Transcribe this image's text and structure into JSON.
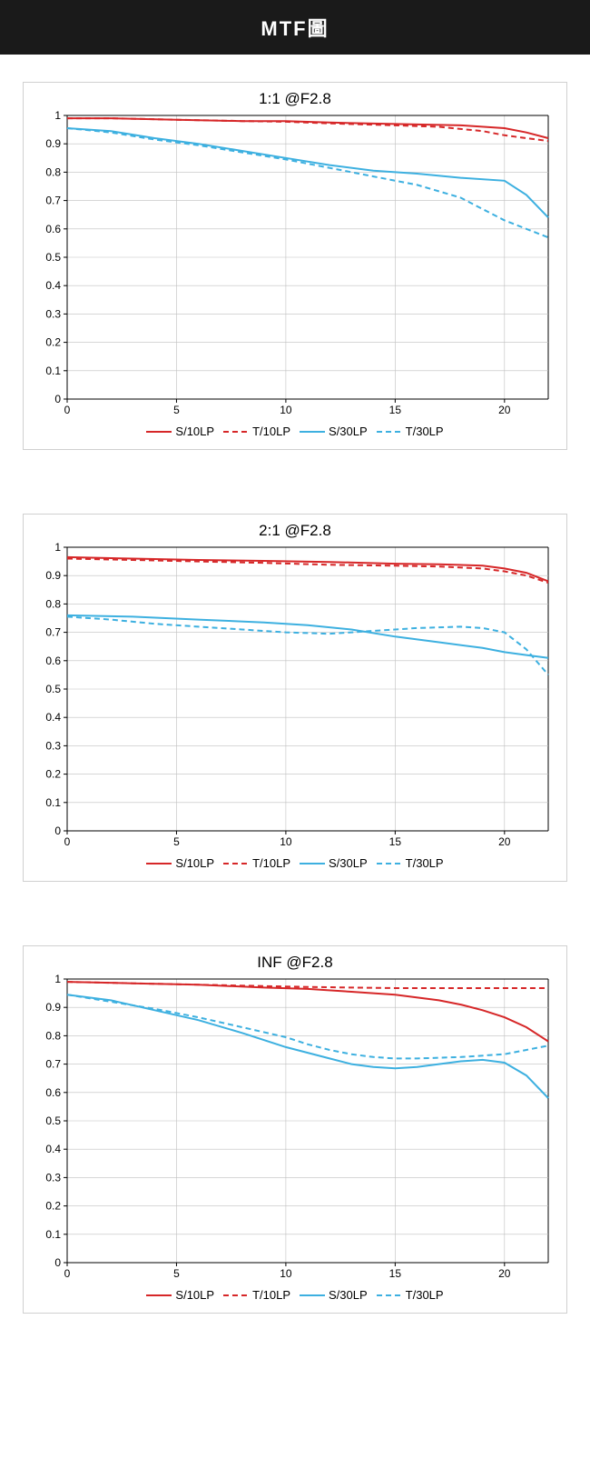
{
  "header": {
    "title": "MTF圖"
  },
  "global": {
    "page_bg": "#ffffff",
    "header_bg": "#1a1a1a",
    "header_color": "#ffffff",
    "panel_border": "#d0d0d0"
  },
  "axis": {
    "xlim": [
      0,
      22
    ],
    "ylim": [
      0,
      1
    ],
    "xtick_step": 5,
    "ytick_step": 0.1,
    "x_ticks": [
      0,
      5,
      10,
      15,
      20
    ],
    "y_ticks": [
      0,
      0.1,
      0.2,
      0.3,
      0.4,
      0.5,
      0.6,
      0.7,
      0.8,
      0.9,
      1
    ],
    "y_tick_labels": [
      "0",
      "0.1",
      "0.2",
      "0.3",
      "0.4",
      "0.5",
      "0.6",
      "0.7",
      "0.8",
      "0.9",
      "1"
    ],
    "grid_color": "#bfbfbf",
    "axis_color": "#000000",
    "tick_fontsize": 12,
    "title_fontsize": 17
  },
  "series_style": {
    "s10": {
      "label": "S/10LP",
      "color": "#d62728",
      "width": 2.0,
      "dash": "none"
    },
    "t10": {
      "label": "T/10LP",
      "color": "#d62728",
      "width": 2.0,
      "dash": "6,4"
    },
    "s30": {
      "label": "S/30LP",
      "color": "#3db0e0",
      "width": 2.0,
      "dash": "none"
    },
    "t30": {
      "label": "T/30LP",
      "color": "#3db0e0",
      "width": 2.0,
      "dash": "6,4"
    }
  },
  "legend_order": [
    "s10",
    "t10",
    "s30",
    "t30"
  ],
  "charts": [
    {
      "id": "chart-1-1",
      "title": "1:1  @F2.8",
      "series": {
        "s10": [
          [
            0,
            0.99
          ],
          [
            2,
            0.99
          ],
          [
            5,
            0.985
          ],
          [
            8,
            0.98
          ],
          [
            10,
            0.98
          ],
          [
            12,
            0.975
          ],
          [
            15,
            0.97
          ],
          [
            18,
            0.965
          ],
          [
            20,
            0.955
          ],
          [
            21,
            0.94
          ],
          [
            22,
            0.92
          ]
        ],
        "t10": [
          [
            0,
            0.99
          ],
          [
            2,
            0.99
          ],
          [
            5,
            0.985
          ],
          [
            8,
            0.98
          ],
          [
            10,
            0.978
          ],
          [
            12,
            0.972
          ],
          [
            15,
            0.965
          ],
          [
            17,
            0.96
          ],
          [
            19,
            0.945
          ],
          [
            20,
            0.93
          ],
          [
            21,
            0.92
          ],
          [
            22,
            0.91
          ]
        ],
        "s30": [
          [
            0,
            0.955
          ],
          [
            2,
            0.945
          ],
          [
            4,
            0.92
          ],
          [
            6,
            0.9
          ],
          [
            8,
            0.875
          ],
          [
            10,
            0.85
          ],
          [
            12,
            0.825
          ],
          [
            14,
            0.805
          ],
          [
            16,
            0.795
          ],
          [
            18,
            0.78
          ],
          [
            20,
            0.77
          ],
          [
            21,
            0.72
          ],
          [
            22,
            0.64
          ]
        ],
        "t30": [
          [
            0,
            0.955
          ],
          [
            2,
            0.94
          ],
          [
            4,
            0.915
          ],
          [
            6,
            0.895
          ],
          [
            8,
            0.87
          ],
          [
            10,
            0.845
          ],
          [
            12,
            0.815
          ],
          [
            14,
            0.785
          ],
          [
            16,
            0.755
          ],
          [
            18,
            0.71
          ],
          [
            19,
            0.67
          ],
          [
            20,
            0.63
          ],
          [
            21,
            0.6
          ],
          [
            22,
            0.57
          ]
        ]
      }
    },
    {
      "id": "chart-2-1",
      "title": "2:1  @F2.8",
      "series": {
        "s10": [
          [
            0,
            0.965
          ],
          [
            3,
            0.96
          ],
          [
            6,
            0.955
          ],
          [
            9,
            0.952
          ],
          [
            12,
            0.948
          ],
          [
            15,
            0.942
          ],
          [
            17,
            0.94
          ],
          [
            19,
            0.935
          ],
          [
            20,
            0.925
          ],
          [
            21,
            0.91
          ],
          [
            22,
            0.88
          ]
        ],
        "t10": [
          [
            0,
            0.96
          ],
          [
            3,
            0.955
          ],
          [
            6,
            0.95
          ],
          [
            9,
            0.945
          ],
          [
            12,
            0.938
          ],
          [
            15,
            0.935
          ],
          [
            17,
            0.932
          ],
          [
            19,
            0.925
          ],
          [
            20,
            0.915
          ],
          [
            21,
            0.9
          ],
          [
            22,
            0.875
          ]
        ],
        "s30": [
          [
            0,
            0.76
          ],
          [
            3,
            0.755
          ],
          [
            6,
            0.745
          ],
          [
            9,
            0.735
          ],
          [
            11,
            0.725
          ],
          [
            13,
            0.71
          ],
          [
            15,
            0.685
          ],
          [
            17,
            0.665
          ],
          [
            19,
            0.645
          ],
          [
            20,
            0.63
          ],
          [
            21,
            0.62
          ],
          [
            22,
            0.61
          ]
        ],
        "t30": [
          [
            0,
            0.755
          ],
          [
            2,
            0.745
          ],
          [
            4,
            0.73
          ],
          [
            6,
            0.72
          ],
          [
            8,
            0.71
          ],
          [
            10,
            0.7
          ],
          [
            12,
            0.695
          ],
          [
            14,
            0.705
          ],
          [
            16,
            0.715
          ],
          [
            18,
            0.72
          ],
          [
            19,
            0.715
          ],
          [
            20,
            0.7
          ],
          [
            21,
            0.64
          ],
          [
            22,
            0.55
          ]
        ]
      }
    },
    {
      "id": "chart-inf",
      "title": "INF @F2.8",
      "series": {
        "s10": [
          [
            0,
            0.99
          ],
          [
            3,
            0.985
          ],
          [
            6,
            0.98
          ],
          [
            9,
            0.97
          ],
          [
            11,
            0.965
          ],
          [
            13,
            0.955
          ],
          [
            15,
            0.945
          ],
          [
            17,
            0.925
          ],
          [
            18,
            0.91
          ],
          [
            19,
            0.89
          ],
          [
            20,
            0.865
          ],
          [
            21,
            0.83
          ],
          [
            22,
            0.78
          ]
        ],
        "t10": [
          [
            0,
            0.99
          ],
          [
            3,
            0.985
          ],
          [
            6,
            0.98
          ],
          [
            9,
            0.975
          ],
          [
            11,
            0.972
          ],
          [
            13,
            0.97
          ],
          [
            15,
            0.968
          ],
          [
            17,
            0.968
          ],
          [
            19,
            0.968
          ],
          [
            20,
            0.968
          ],
          [
            21,
            0.968
          ],
          [
            22,
            0.968
          ]
        ],
        "s30": [
          [
            0,
            0.945
          ],
          [
            2,
            0.925
          ],
          [
            4,
            0.89
          ],
          [
            6,
            0.855
          ],
          [
            8,
            0.81
          ],
          [
            10,
            0.76
          ],
          [
            12,
            0.72
          ],
          [
            13,
            0.7
          ],
          [
            14,
            0.69
          ],
          [
            15,
            0.685
          ],
          [
            16,
            0.69
          ],
          [
            17,
            0.7
          ],
          [
            18,
            0.71
          ],
          [
            19,
            0.715
          ],
          [
            20,
            0.705
          ],
          [
            21,
            0.66
          ],
          [
            22,
            0.58
          ]
        ],
        "t30": [
          [
            0,
            0.945
          ],
          [
            2,
            0.92
          ],
          [
            4,
            0.895
          ],
          [
            6,
            0.865
          ],
          [
            8,
            0.83
          ],
          [
            10,
            0.795
          ],
          [
            11,
            0.77
          ],
          [
            12,
            0.75
          ],
          [
            13,
            0.735
          ],
          [
            14,
            0.725
          ],
          [
            15,
            0.72
          ],
          [
            16,
            0.72
          ],
          [
            18,
            0.725
          ],
          [
            20,
            0.735
          ],
          [
            21,
            0.75
          ],
          [
            22,
            0.765
          ]
        ]
      }
    }
  ]
}
